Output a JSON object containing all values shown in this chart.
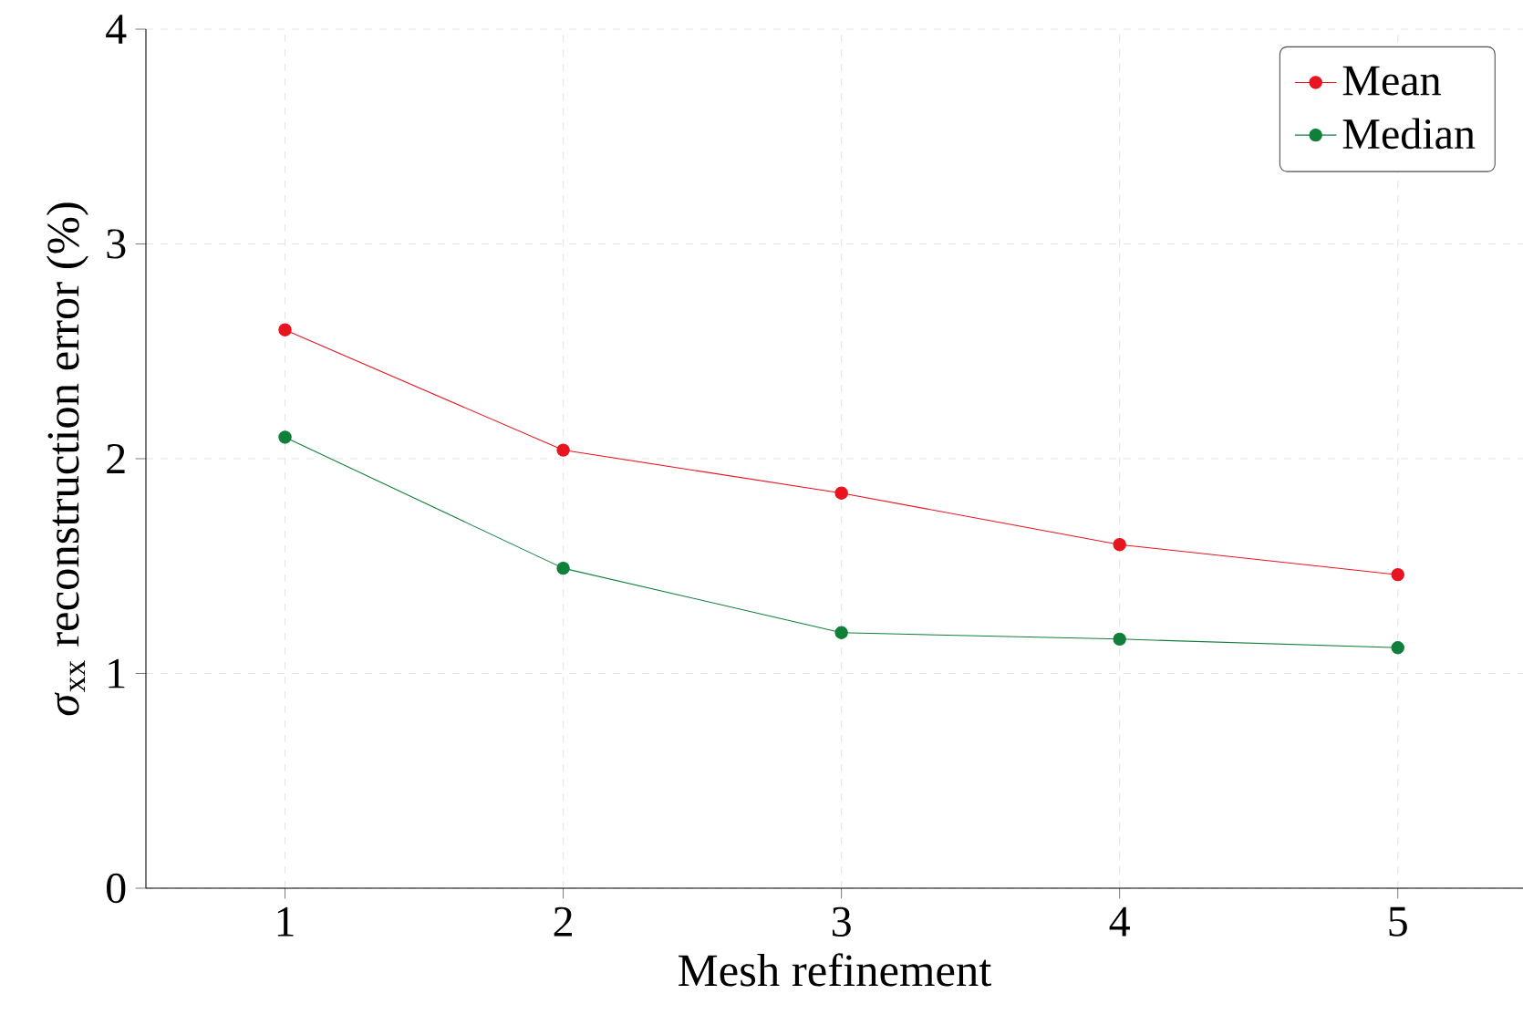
{
  "chart_data": {
    "type": "line",
    "xlabel": "Mesh refinement",
    "ylabel": "*σ*$_{xx}$ reconstruction error (%)",
    "x": [
      1,
      2,
      3,
      4,
      5
    ],
    "series": [
      {
        "name": "Mean",
        "color": "#e8141f",
        "values": [
          2.6,
          2.04,
          1.84,
          1.6,
          1.46
        ]
      },
      {
        "name": "Median",
        "color": "#0f7f3a",
        "values": [
          2.1,
          1.49,
          1.19,
          1.16,
          1.12
        ]
      }
    ],
    "xlim": [
      0.5,
      5.45
    ],
    "ylim": [
      0,
      4
    ],
    "xticks": [
      1,
      2,
      3,
      4,
      5
    ],
    "yticks": [
      0,
      1,
      2,
      3,
      4
    ],
    "grid": true,
    "legend": "top right",
    "marker": "circle",
    "line_style": "solid"
  }
}
